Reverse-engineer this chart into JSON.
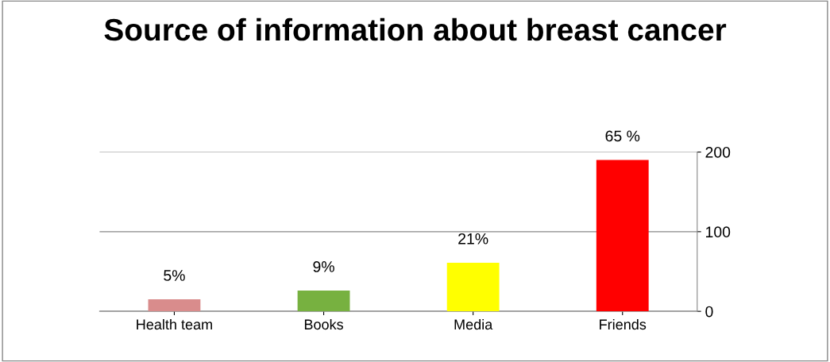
{
  "chart_data": {
    "type": "bar",
    "title": "Source of information about breast cancer",
    "categories": [
      "Health team",
      "Books",
      "Media",
      "Friends"
    ],
    "values": [
      15,
      26,
      61,
      190
    ],
    "colors": [
      "#d98c8c",
      "#77b140",
      "#ffff00",
      "#ff0000"
    ],
    "annotations": [
      {
        "text": "5%",
        "x": "Health team",
        "y": 15
      },
      {
        "text": "9%",
        "x": "Books",
        "y": 26
      },
      {
        "text": "21%",
        "x": "Media",
        "y": 61
      },
      {
        "text": "65 %",
        "x": "Friends",
        "y": 190
      }
    ],
    "ylim": [
      0,
      200
    ],
    "yticks": [
      0,
      100,
      200
    ],
    "grid": "y"
  }
}
